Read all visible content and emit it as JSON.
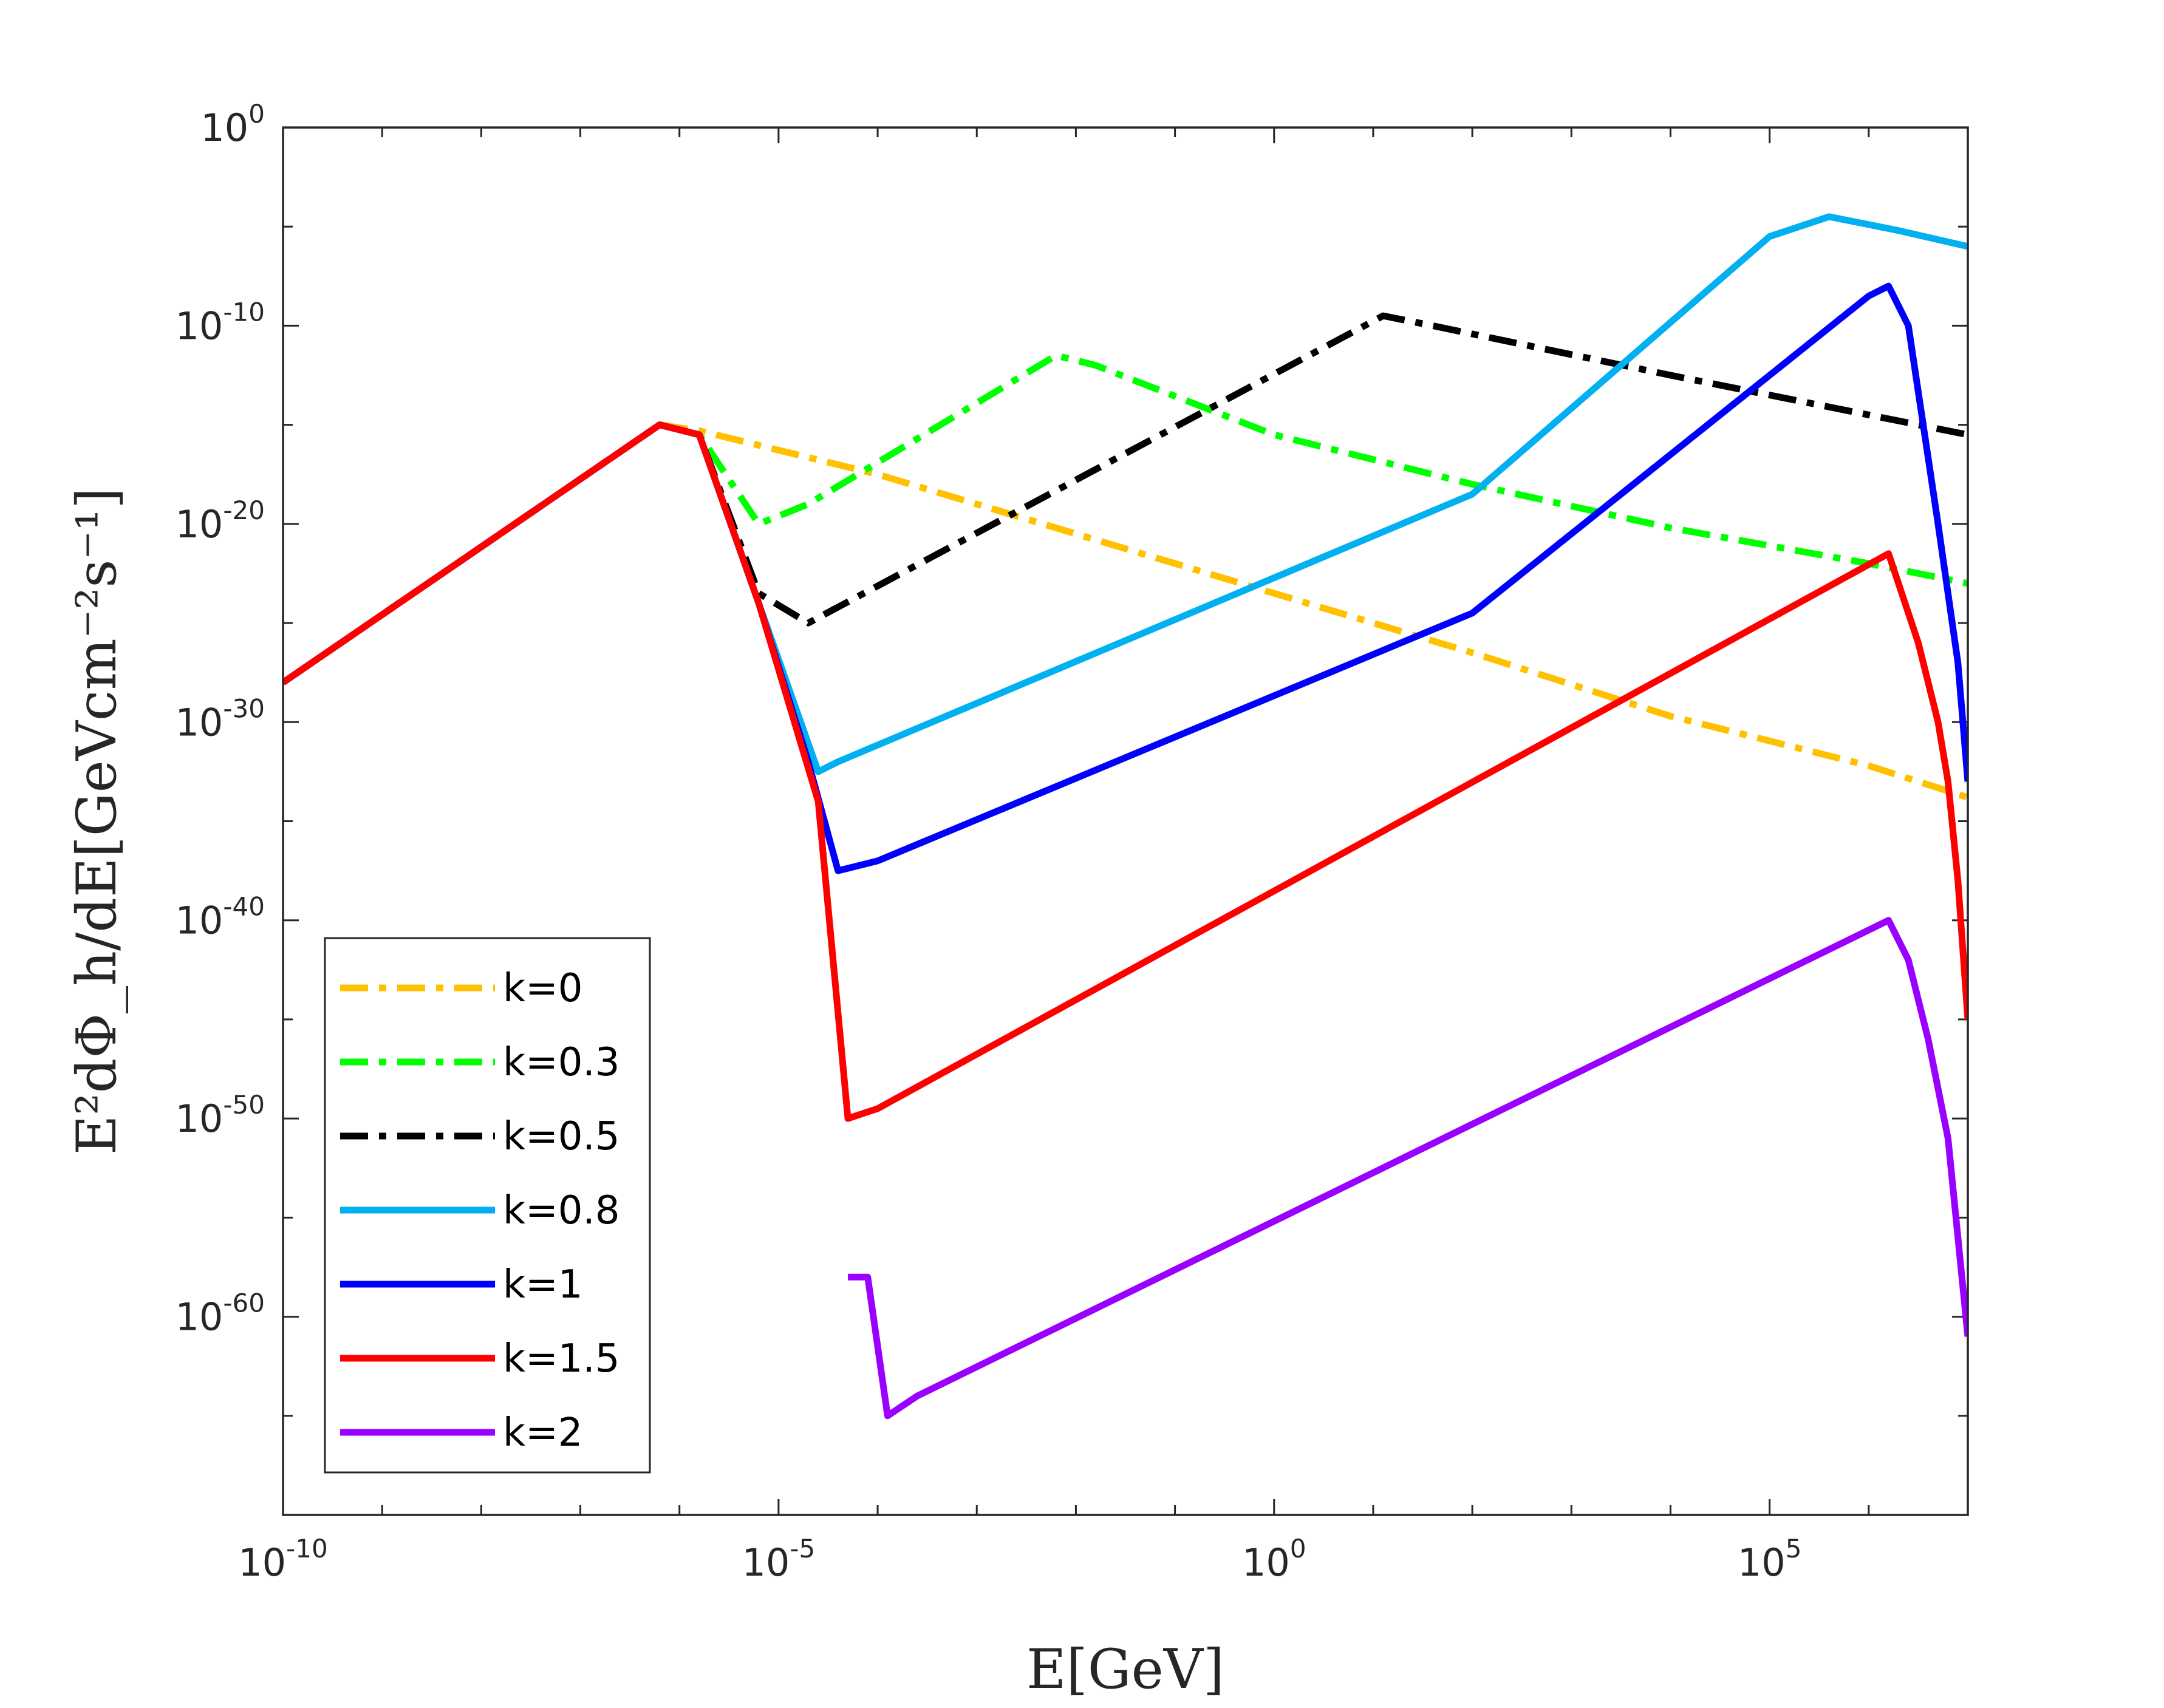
{
  "chart_data": {
    "type": "line",
    "title": "",
    "xlabel": "E[GeV]",
    "ylabel": "E²dΦ_h/dE[GeVcm⁻²s⁻¹]",
    "xscale": "log",
    "yscale": "log",
    "xlim_exp": [
      -10,
      7
    ],
    "ylim_exp": [
      -70,
      0
    ],
    "x_ticks": [
      {
        "base": "10",
        "exp": "-10",
        "value_exp": -10
      },
      {
        "base": "10",
        "exp": "-5",
        "value_exp": -5
      },
      {
        "base": "10",
        "exp": "0",
        "value_exp": 0
      },
      {
        "base": "10",
        "exp": "5",
        "value_exp": 5
      }
    ],
    "y_ticks": [
      {
        "base": "10",
        "exp": "0",
        "value_exp": 0
      },
      {
        "base": "10",
        "exp": "-10",
        "value_exp": -10
      },
      {
        "base": "10",
        "exp": "-20",
        "value_exp": -20
      },
      {
        "base": "10",
        "exp": "-30",
        "value_exp": -30
      },
      {
        "base": "10",
        "exp": "-40",
        "value_exp": -40
      },
      {
        "base": "10",
        "exp": "-50",
        "value_exp": -50
      },
      {
        "base": "10",
        "exp": "-60",
        "value_exp": -60
      }
    ],
    "legend_position": "bottom-left",
    "series": [
      {
        "name": "k=0",
        "color": "#FFC000",
        "style": "dashdot",
        "points_log10": [
          [
            -10,
            -28
          ],
          [
            -6.2,
            -15
          ],
          [
            -5.8,
            -15.3
          ],
          [
            -4,
            -17.5
          ],
          [
            -2,
            -20.5
          ],
          [
            0,
            -23.5
          ],
          [
            2,
            -26.5
          ],
          [
            4,
            -29.7
          ],
          [
            6,
            -32.2
          ],
          [
            7,
            -33.8
          ]
        ]
      },
      {
        "name": "k=0.3",
        "color": "#00FF00",
        "style": "dashdot",
        "points_log10": [
          [
            -10,
            -28
          ],
          [
            -6.2,
            -15
          ],
          [
            -5.8,
            -15.5
          ],
          [
            -5.2,
            -20
          ],
          [
            -4.7,
            -19
          ],
          [
            -2.2,
            -11.5
          ],
          [
            -1.8,
            -12
          ],
          [
            0,
            -15.5
          ],
          [
            2,
            -18
          ],
          [
            4,
            -20.2
          ],
          [
            6,
            -22
          ],
          [
            7,
            -23
          ]
        ]
      },
      {
        "name": "k=0.5",
        "color": "#000000",
        "style": "dashdot",
        "points_log10": [
          [
            -10,
            -28
          ],
          [
            -6.2,
            -15
          ],
          [
            -5.8,
            -15.5
          ],
          [
            -5.2,
            -23.5
          ],
          [
            -4.7,
            -25
          ],
          [
            1.1,
            -9.5
          ],
          [
            1.6,
            -10
          ],
          [
            4,
            -12.5
          ],
          [
            6,
            -14.5
          ],
          [
            7,
            -15.5
          ]
        ]
      },
      {
        "name": "k=0.8",
        "color": "#00B0F0",
        "style": "solid",
        "points_log10": [
          [
            -10,
            -28
          ],
          [
            -6.2,
            -15
          ],
          [
            -5.8,
            -15.5
          ],
          [
            -5.2,
            -24
          ],
          [
            -4.6,
            -32.5
          ],
          [
            -4.4,
            -32
          ],
          [
            2,
            -18.5
          ],
          [
            5,
            -5.5
          ],
          [
            5.6,
            -4.5
          ],
          [
            6.3,
            -5.2
          ],
          [
            7,
            -6
          ]
        ]
      },
      {
        "name": "k=1",
        "color": "#0000FF",
        "style": "solid",
        "points_log10": [
          [
            -10,
            -28
          ],
          [
            -6.2,
            -15
          ],
          [
            -5.8,
            -15.5
          ],
          [
            -5.2,
            -24
          ],
          [
            -4.7,
            -32
          ],
          [
            -4.4,
            -37.5
          ],
          [
            -4.0,
            -37
          ],
          [
            2,
            -24.5
          ],
          [
            6,
            -8.5
          ],
          [
            6.2,
            -8
          ],
          [
            6.4,
            -10
          ],
          [
            6.7,
            -20
          ],
          [
            6.9,
            -27
          ],
          [
            7,
            -33
          ]
        ]
      },
      {
        "name": "k=1.5",
        "color": "#FF0000",
        "style": "solid",
        "points_log10": [
          [
            -10,
            -28
          ],
          [
            -6.2,
            -15
          ],
          [
            -5.8,
            -15.5
          ],
          [
            -5.2,
            -24
          ],
          [
            -4.6,
            -34
          ],
          [
            -4.3,
            -50
          ],
          [
            -4.0,
            -49.5
          ],
          [
            6.2,
            -21.5
          ],
          [
            6.5,
            -26
          ],
          [
            6.7,
            -30
          ],
          [
            6.8,
            -33
          ],
          [
            6.9,
            -38
          ],
          [
            7,
            -45
          ]
        ]
      },
      {
        "name": "k=2",
        "color": "#9900FF",
        "style": "solid",
        "points_log10": [
          [
            -4.3,
            -58
          ],
          [
            -4.1,
            -58
          ],
          [
            -3.9,
            -65
          ],
          [
            -3.6,
            -64
          ],
          [
            6.2,
            -40
          ],
          [
            6.4,
            -42
          ],
          [
            6.6,
            -46
          ],
          [
            6.8,
            -51
          ],
          [
            7,
            -61
          ]
        ]
      }
    ]
  }
}
